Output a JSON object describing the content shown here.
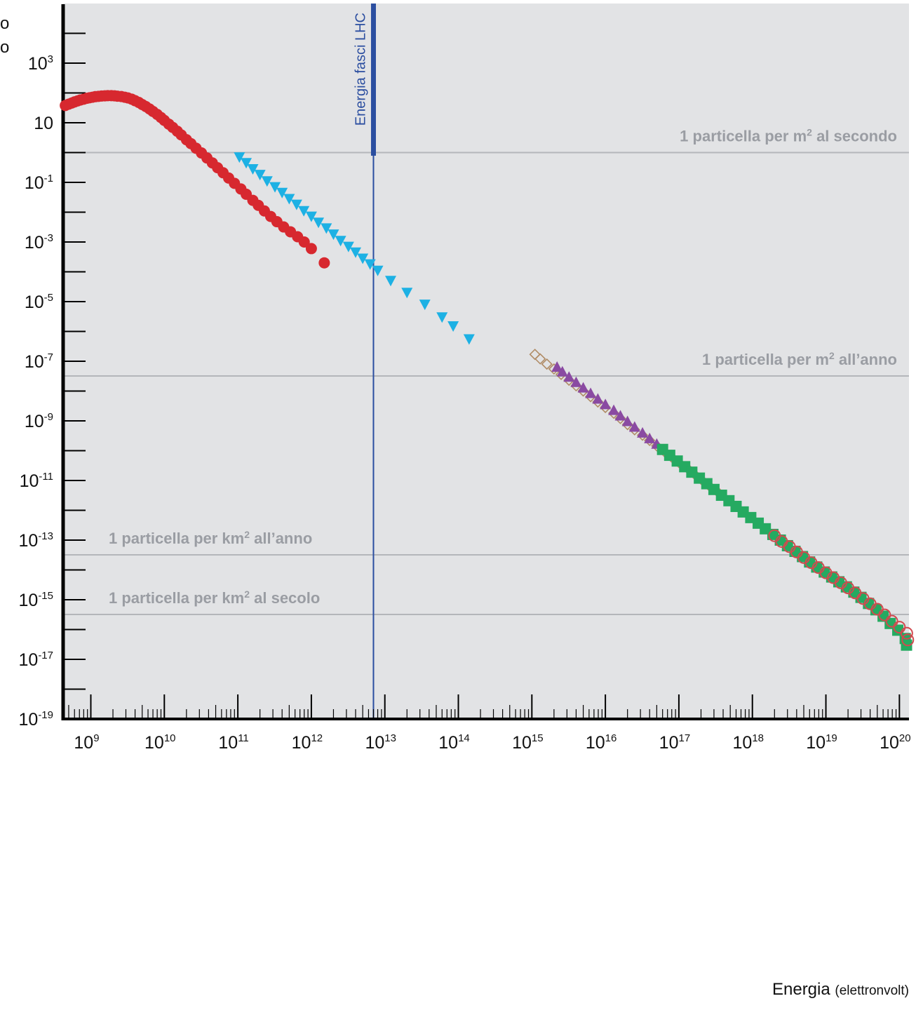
{
  "chart_data": {
    "type": "scatter",
    "title": "",
    "y_title_fragment_1": "o",
    "y_title_fragment_2": "o",
    "xlabel": "Energia",
    "xlabel_unit": "(elettronvolt)",
    "xscale": "log",
    "yscale": "log",
    "xlim": [
      420000000.0,
      1.35e+20
    ],
    "ylim": [
      1e-19,
      100000.0
    ],
    "x_ticks": [
      {
        "base": "10",
        "exp": "9",
        "value": 1000000000.0
      },
      {
        "base": "10",
        "exp": "10",
        "value": 10000000000.0
      },
      {
        "base": "10",
        "exp": "11",
        "value": 100000000000.0
      },
      {
        "base": "10",
        "exp": "12",
        "value": 1000000000000.0
      },
      {
        "base": "10",
        "exp": "13",
        "value": 10000000000000.0
      },
      {
        "base": "10",
        "exp": "14",
        "value": 100000000000000.0
      },
      {
        "base": "10",
        "exp": "15",
        "value": 1000000000000000.0
      },
      {
        "base": "10",
        "exp": "16",
        "value": 1e+16
      },
      {
        "base": "10",
        "exp": "17",
        "value": 1e+17
      },
      {
        "base": "10",
        "exp": "18",
        "value": 1e+18
      },
      {
        "base": "10",
        "exp": "19",
        "value": 1e+19
      },
      {
        "base": "10",
        "exp": "20",
        "value": 1e+20
      }
    ],
    "y_ticks": [
      {
        "base": "10",
        "exp": "3",
        "value": 1000.0
      },
      {
        "base": "10",
        "exp": "",
        "value": 10.0
      },
      {
        "base": "10",
        "exp": "-1",
        "value": 0.1
      },
      {
        "base": "10",
        "exp": "-3",
        "value": 0.001
      },
      {
        "base": "10",
        "exp": "-5",
        "value": 1e-05
      },
      {
        "base": "10",
        "exp": "-7",
        "value": 1e-07
      },
      {
        "base": "10",
        "exp": "-9",
        "value": 1e-09
      },
      {
        "base": "10",
        "exp": "-11",
        "value": 1e-11
      },
      {
        "base": "10",
        "exp": "-13",
        "value": 1e-13
      },
      {
        "base": "10",
        "exp": "-15",
        "value": 1e-15
      },
      {
        "base": "10",
        "exp": "-17",
        "value": 1e-17
      },
      {
        "base": "10",
        "exp": "-19",
        "value": 1e-19
      }
    ],
    "reference_lines": [
      {
        "y": 1,
        "label_pre": "1 particella per m",
        "label_sup": "2",
        "label_post": " al secondo",
        "anchor": "right"
      },
      {
        "y": 3.2e-08,
        "label_pre": "1 particella per m",
        "label_sup": "2",
        "label_post": " all’anno",
        "anchor": "right"
      },
      {
        "y": 3.2e-14,
        "label_pre": "1 particella per km",
        "label_sup": "2",
        "label_post": " all’anno",
        "anchor": "left"
      },
      {
        "y": 3.2e-16,
        "label_pre": "1 particella per km",
        "label_sup": "2",
        "label_post": " al secolo",
        "anchor": "left"
      }
    ],
    "vertical_line": {
      "x": 7000000000000.0,
      "label": "Energia fasci LHC"
    },
    "series": [
      {
        "marker": "circle-filled",
        "color": "#d7282f",
        "points": [
          [
            450000000.0,
            38
          ],
          [
            500000000.0,
            42
          ],
          [
            550000000.0,
            46
          ],
          [
            600000000.0,
            50
          ],
          [
            660000000.0,
            54
          ],
          [
            720000000.0,
            58
          ],
          [
            800000000.0,
            62
          ],
          [
            880000000.0,
            66
          ],
          [
            960000000.0,
            69
          ],
          [
            1050000000.0,
            72
          ],
          [
            1150000000.0,
            75
          ],
          [
            1270000000.0,
            77
          ],
          [
            1400000000.0,
            79
          ],
          [
            1550000000.0,
            80
          ],
          [
            1700000000.0,
            81
          ],
          [
            1900000000.0,
            81
          ],
          [
            2100000000.0,
            80
          ],
          [
            2300000000.0,
            78
          ],
          [
            2600000000.0,
            76
          ],
          [
            2900000000.0,
            72
          ],
          [
            3200000000.0,
            68
          ],
          [
            3600000000.0,
            62
          ],
          [
            4000000000.0,
            55
          ],
          [
            4500000000.0,
            48
          ],
          [
            5000000000.0,
            41
          ],
          [
            5600000000.0,
            35
          ],
          [
            6300000000.0,
            29
          ],
          [
            7000000000.0,
            24
          ],
          [
            8000000000.0,
            19
          ],
          [
            9000000000.0,
            15
          ],
          [
            10000000000.0,
            12
          ],
          [
            11500000000.0,
            9
          ],
          [
            13000000000.0,
            7
          ],
          [
            15000000000.0,
            5.2
          ],
          [
            17000000000.0,
            3.9
          ],
          [
            20000000000.0,
            2.7
          ],
          [
            23000000000.0,
            2
          ],
          [
            27000000000.0,
            1.4
          ],
          [
            32000000000.0,
            0.97
          ],
          [
            38000000000.0,
            0.66
          ],
          [
            45000000000.0,
            0.45
          ],
          [
            53000000000.0,
            0.31
          ],
          [
            63000000000.0,
            0.21
          ],
          [
            75000000000.0,
            0.14
          ],
          [
            90000000000.0,
            0.093
          ],
          [
            110000000000.0,
            0.06
          ],
          [
            130000000000.0,
            0.04
          ],
          [
            160000000000.0,
            0.025
          ],
          [
            190000000000.0,
            0.017
          ],
          [
            230000000000.0,
            0.011
          ],
          [
            280000000000.0,
            0.0072
          ],
          [
            340000000000.0,
            0.0048
          ],
          [
            420000000000.0,
            0.0032
          ],
          [
            520000000000.0,
            0.0022
          ],
          [
            650000000000.0,
            0.0015
          ],
          [
            800000000000.0,
            0.001
          ],
          [
            1000000000000.0,
            0.0006
          ],
          [
            1500000000000.0,
            0.0002
          ]
        ]
      },
      {
        "marker": "triangle-down",
        "color": "#1db1e4",
        "points": [
          [
            105000000000.0,
            0.7
          ],
          [
            130000000000.0,
            0.45
          ],
          [
            160000000000.0,
            0.28
          ],
          [
            200000000000.0,
            0.18
          ],
          [
            250000000000.0,
            0.11
          ],
          [
            320000000000.0,
            0.07
          ],
          [
            400000000000.0,
            0.045
          ],
          [
            500000000000.0,
            0.028
          ],
          [
            630000000000.0,
            0.018
          ],
          [
            790000000000.0,
            0.011
          ],
          [
            1000000000000.0,
            0.0072
          ],
          [
            1250000000000.0,
            0.0045
          ],
          [
            1600000000000.0,
            0.0029
          ],
          [
            2000000000000.0,
            0.0018
          ],
          [
            2500000000000.0,
            0.0011
          ],
          [
            3200000000000.0,
            0.0007
          ],
          [
            4000000000000.0,
            0.00045
          ],
          [
            5000000000000.0,
            0.00028
          ],
          [
            6300000000000.0,
            0.00018
          ],
          [
            8000000000000.0,
            0.00011
          ],
          [
            12000000000000.0,
            5e-05
          ],
          [
            20000000000000.0,
            2e-05
          ],
          [
            35000000000000.0,
            8e-06
          ],
          [
            60000000000000.0,
            3e-06
          ],
          [
            85000000000000.0,
            1.5e-06
          ],
          [
            140000000000000.0,
            5.5e-07
          ]
        ]
      },
      {
        "marker": "diamond-open",
        "color": "#b08c66",
        "points": [
          [
            1100000000000000.0,
            1.7e-07
          ],
          [
            1300000000000000.0,
            1.2e-07
          ],
          [
            1600000000000000.0,
            8e-08
          ],
          [
            2000000000000000.0,
            5.5e-08
          ],
          [
            2500000000000000.0,
            3.6e-08
          ],
          [
            3200000000000000.0,
            2.3e-08
          ],
          [
            4000000000000000.0,
            1.5e-08
          ],
          [
            5000000000000000.0,
            1e-08
          ],
          [
            6300000000000000.0,
            6.5e-09
          ],
          [
            7900000000000000.0,
            4.3e-09
          ],
          [
            1e+16,
            2.8e-09
          ],
          [
            1.3e+16,
            1.8e-09
          ],
          [
            1.6e+16,
            1.2e-09
          ],
          [
            2e+16,
            7.5e-10
          ],
          [
            2.5e+16,
            5e-10
          ],
          [
            3.2e+16,
            3.3e-10
          ],
          [
            4e+16,
            2.2e-10
          ],
          [
            5e+16,
            1.45e-10
          ],
          [
            6.3e+16,
            9.5e-11
          ],
          [
            7.9e+16,
            6.2e-11
          ],
          [
            1e+17,
            4e-11
          ],
          [
            1.3e+17,
            2.6e-11
          ],
          [
            1.6e+17,
            1.7e-11
          ],
          [
            2e+17,
            1.1e-11
          ],
          [
            2.5e+17,
            7.2e-12
          ],
          [
            3.2e+17,
            4.7e-12
          ]
        ]
      },
      {
        "marker": "triangle-up",
        "color": "#8a4aa2",
        "points": [
          [
            2200000000000000.0,
            6.5e-08
          ],
          [
            2600000000000000.0,
            4.5e-08
          ],
          [
            3200000000000000.0,
            3e-08
          ],
          [
            4000000000000000.0,
            2e-08
          ],
          [
            5000000000000000.0,
            1.3e-08
          ],
          [
            6300000000000000.0,
            8.5e-09
          ],
          [
            7900000000000000.0,
            5.5e-09
          ],
          [
            1e+16,
            3.6e-09
          ],
          [
            1.3e+16,
            2.3e-09
          ],
          [
            1.6e+16,
            1.5e-09
          ],
          [
            2e+16,
            9.7e-10
          ],
          [
            2.5e+16,
            6.3e-10
          ],
          [
            3.2e+16,
            4e-10
          ],
          [
            4e+16,
            2.6e-10
          ],
          [
            5e+16,
            1.7e-10
          ],
          [
            6.3e+16,
            1.1e-10
          ],
          [
            7.9e+16,
            7.1e-11
          ],
          [
            1e+17,
            4.5e-11
          ]
        ]
      },
      {
        "marker": "square-filled",
        "color": "#25aa61",
        "points": [
          [
            6e+16,
            1.1e-10
          ],
          [
            7.5e+16,
            7e-11
          ],
          [
            9.5e+16,
            4.5e-11
          ],
          [
            1.2e+17,
            2.9e-11
          ],
          [
            1.5e+17,
            1.9e-11
          ],
          [
            1.9e+17,
            1.2e-11
          ],
          [
            2.4e+17,
            7.8e-12
          ],
          [
            3e+17,
            5e-12
          ],
          [
            3.8e+17,
            3.2e-12
          ],
          [
            4.8e+17,
            2.1e-12
          ],
          [
            6e+17,
            1.35e-12
          ],
          [
            7.5e+17,
            8.8e-13
          ],
          [
            9.5e+17,
            5.7e-13
          ],
          [
            1.2e+18,
            3.7e-13
          ],
          [
            1.5e+18,
            2.4e-13
          ],
          [
            1.9e+18,
            1.55e-13
          ],
          [
            2.4e+18,
            1e-13
          ],
          [
            3e+18,
            6.5e-14
          ],
          [
            3.8e+18,
            4.2e-14
          ],
          [
            4.8e+18,
            2.8e-14
          ],
          [
            6e+18,
            1.85e-14
          ],
          [
            7.5e+18,
            1.25e-14
          ],
          [
            9.5e+18,
            8.5e-15
          ],
          [
            1.2e+19,
            5.8e-15
          ],
          [
            1.5e+19,
            4e-15
          ],
          [
            1.9e+19,
            2.7e-15
          ],
          [
            2.4e+19,
            1.8e-15
          ],
          [
            3e+19,
            1.2e-15
          ],
          [
            3.8e+19,
            7.5e-16
          ],
          [
            4.8e+19,
            4.6e-16
          ],
          [
            6e+19,
            2.8e-16
          ],
          [
            7.5e+19,
            1.6e-16
          ],
          [
            9.5e+19,
            9.5e-17
          ],
          [
            1.2e+20,
            5e-17
          ],
          [
            1.25e+20,
            3e-17
          ]
        ]
      },
      {
        "marker": "circle-open",
        "color": "#d14a4f",
        "points": [
          [
            2e+18,
            1.4e-13
          ],
          [
            2.5e+18,
            9e-14
          ],
          [
            3.2e+18,
            6e-14
          ],
          [
            4e+18,
            4e-14
          ],
          [
            5e+18,
            2.6e-14
          ],
          [
            6.3e+18,
            1.75e-14
          ],
          [
            7.9e+18,
            1.2e-14
          ],
          [
            1e+19,
            8e-15
          ],
          [
            1.26e+19,
            5.5e-15
          ],
          [
            1.6e+19,
            3.7e-15
          ],
          [
            2e+19,
            2.5e-15
          ],
          [
            2.5e+19,
            1.7e-15
          ],
          [
            3.2e+19,
            1.1e-15
          ],
          [
            4e+19,
            7.3e-16
          ],
          [
            5e+19,
            4.8e-16
          ],
          [
            6.3e+19,
            3.1e-16
          ],
          [
            7.9e+19,
            1.9e-16
          ],
          [
            1e+20,
            1.2e-16
          ],
          [
            1.26e+20,
            7.5e-17
          ],
          [
            1.3e+20,
            4.5e-17
          ]
        ]
      }
    ]
  }
}
